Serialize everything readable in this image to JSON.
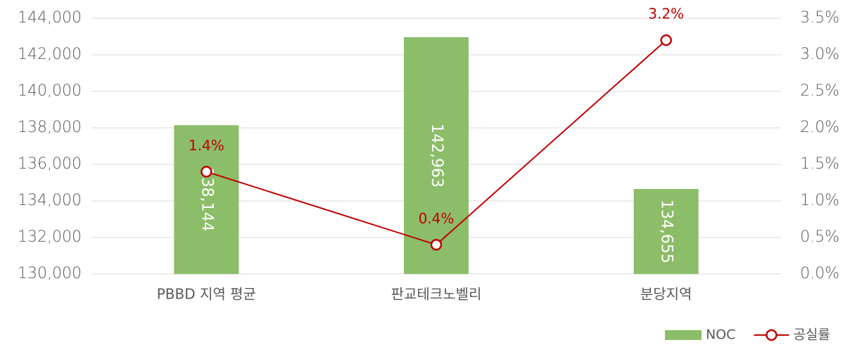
{
  "chart_data": {
    "type": "bar",
    "categories": [
      "PBBD 지역 평균",
      "판교테크노벨리",
      "분당지역"
    ],
    "series": [
      {
        "name": "NOC",
        "type": "bar",
        "color": "#8cbd69",
        "values": [
          138144,
          142963,
          134655
        ],
        "value_labels": [
          "138,144",
          "142,963",
          "134,655"
        ]
      },
      {
        "name": "공실률",
        "type": "line",
        "axis": "y2",
        "color": "#c00000",
        "values": [
          1.4,
          0.4,
          3.2
        ],
        "value_labels": [
          "1.4%",
          "0.4%",
          "3.2%"
        ]
      }
    ],
    "ylim": [
      130000,
      144000
    ],
    "yticks": [
      {
        "value": 130000,
        "label": "130,000"
      },
      {
        "value": 132000,
        "label": "132,000"
      },
      {
        "value": 134000,
        "label": "134,000"
      },
      {
        "value": 136000,
        "label": "136,000"
      },
      {
        "value": 138000,
        "label": "138,000"
      },
      {
        "value": 140000,
        "label": "140,000"
      },
      {
        "value": 142000,
        "label": "142,000"
      },
      {
        "value": 144000,
        "label": "144,000"
      }
    ],
    "y2lim": [
      0,
      3.5
    ],
    "y2ticks": [
      {
        "value": 0,
        "label": "0.0%"
      },
      {
        "value": 0.5,
        "label": "0.5%"
      },
      {
        "value": 1,
        "label": "1.0%"
      },
      {
        "value": 1.5,
        "label": "1.5%"
      },
      {
        "value": 2,
        "label": "2.0%"
      },
      {
        "value": 2.5,
        "label": "2.5%"
      },
      {
        "value": 3,
        "label": "3.0%"
      },
      {
        "value": 3.5,
        "label": "3.5%"
      }
    ],
    "grid": true,
    "legend": "bottom-right"
  }
}
